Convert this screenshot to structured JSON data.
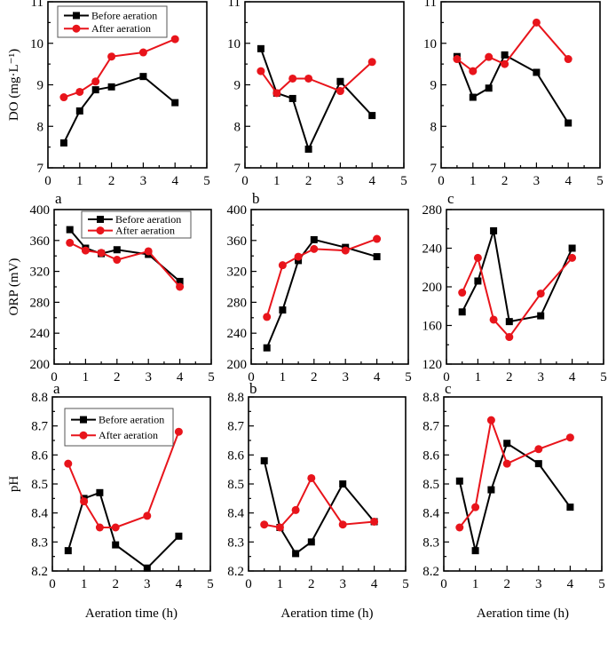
{
  "colors": {
    "before": "#000000",
    "after": "#e8141b"
  },
  "legend": {
    "before": "Before aeration",
    "after": "After aeration"
  },
  "chart_data": [
    {
      "type": "line",
      "panel": "",
      "row": 0,
      "col": 0,
      "ylabel": "DO (mg·L⁻¹)",
      "xlabel": "",
      "ylim": [
        7,
        11
      ],
      "yticks": [
        "7",
        "8",
        "9",
        "10",
        "11"
      ],
      "xlim": [
        0,
        5
      ],
      "xticks": [
        "0",
        "1",
        "2",
        "3",
        "4",
        "5"
      ],
      "legend": "top-left",
      "x": [
        0.5,
        1,
        1.5,
        2,
        3,
        4
      ],
      "series": [
        {
          "name": "Before aeration",
          "values": [
            7.6,
            8.37,
            8.88,
            8.95,
            9.2,
            8.57
          ]
        },
        {
          "name": "After aeration",
          "values": [
            8.7,
            8.83,
            9.08,
            9.68,
            9.78,
            10.1
          ]
        }
      ]
    },
    {
      "type": "line",
      "panel": "",
      "row": 0,
      "col": 1,
      "ylabel": "",
      "xlabel": "",
      "ylim": [
        7,
        11
      ],
      "yticks": [
        "7",
        "8",
        "9",
        "10",
        "11"
      ],
      "xlim": [
        0,
        5
      ],
      "xticks": [
        "0",
        "1",
        "2",
        "3",
        "4",
        "5"
      ],
      "x": [
        0.5,
        1,
        1.5,
        2,
        3,
        4
      ],
      "series": [
        {
          "name": "Before aeration",
          "values": [
            9.87,
            8.8,
            8.67,
            7.45,
            9.08,
            8.26
          ]
        },
        {
          "name": "After aeration",
          "values": [
            9.33,
            8.8,
            9.15,
            9.15,
            8.85,
            9.55
          ]
        }
      ]
    },
    {
      "type": "line",
      "panel": "",
      "row": 0,
      "col": 2,
      "ylabel": "",
      "xlabel": "",
      "ylim": [
        7,
        11
      ],
      "yticks": [
        "7",
        "8",
        "9",
        "10",
        "11"
      ],
      "xlim": [
        0,
        5
      ],
      "xticks": [
        "0",
        "1",
        "2",
        "3",
        "4",
        "5"
      ],
      "x": [
        0.5,
        1,
        1.5,
        2,
        3,
        4
      ],
      "series": [
        {
          "name": "Before aeration",
          "values": [
            9.68,
            8.7,
            8.92,
            9.72,
            9.3,
            8.08
          ]
        },
        {
          "name": "After aeration",
          "values": [
            9.62,
            9.33,
            9.67,
            9.5,
            10.5,
            9.62
          ]
        }
      ]
    },
    {
      "type": "line",
      "panel": "a",
      "row": 1,
      "col": 0,
      "ylabel": "ORP (mV)",
      "xlabel": "",
      "ylim": [
        200,
        400
      ],
      "yticks": [
        "200",
        "240",
        "280",
        "320",
        "360",
        "400"
      ],
      "xlim": [
        0,
        5
      ],
      "xticks": [
        "0",
        "1",
        "2",
        "3",
        "4",
        "5"
      ],
      "legend": "top-center",
      "x": [
        0.5,
        1,
        1.5,
        2,
        3,
        4
      ],
      "series": [
        {
          "name": "Before aeration",
          "values": [
            374,
            350,
            343,
            348,
            342,
            307
          ]
        },
        {
          "name": "After aeration",
          "values": [
            357,
            347,
            344,
            335,
            346,
            300
          ]
        }
      ]
    },
    {
      "type": "line",
      "panel": "b",
      "row": 1,
      "col": 1,
      "ylabel": "",
      "xlabel": "",
      "ylim": [
        200,
        400
      ],
      "yticks": [
        "200",
        "240",
        "280",
        "320",
        "360",
        "400"
      ],
      "xlim": [
        0,
        5
      ],
      "xticks": [
        "0",
        "1",
        "2",
        "3",
        "4",
        "5"
      ],
      "x": [
        0.5,
        1,
        1.5,
        2,
        3,
        4
      ],
      "series": [
        {
          "name": "Before aeration",
          "values": [
            221,
            270,
            334,
            361,
            351,
            339
          ]
        },
        {
          "name": "After aeration",
          "values": [
            261,
            328,
            339,
            349,
            347,
            362
          ]
        }
      ]
    },
    {
      "type": "line",
      "panel": "c",
      "row": 1,
      "col": 2,
      "ylabel": "",
      "xlabel": "",
      "ylim": [
        120,
        280
      ],
      "yticks": [
        "120",
        "160",
        "200",
        "240",
        "280"
      ],
      "xlim": [
        0,
        5
      ],
      "xticks": [
        "0",
        "1",
        "2",
        "3",
        "4",
        "5"
      ],
      "x": [
        0.5,
        1,
        1.5,
        2,
        3,
        4
      ],
      "series": [
        {
          "name": "Before aeration",
          "values": [
            174,
            206,
            258,
            164,
            170,
            240
          ]
        },
        {
          "name": "After aeration",
          "values": [
            194,
            230,
            166,
            148,
            193,
            230
          ]
        }
      ]
    },
    {
      "type": "line",
      "panel": "a",
      "row": 2,
      "col": 0,
      "ylabel": "pH",
      "xlabel": "Aeration time (h)",
      "ylim": [
        8.2,
        8.8
      ],
      "yticks": [
        "8.2",
        "8.3",
        "8.4",
        "8.5",
        "8.6",
        "8.7",
        "8.8"
      ],
      "xlim": [
        0,
        5
      ],
      "xticks": [
        "0",
        "1",
        "2",
        "3",
        "4",
        "5"
      ],
      "legend": "top-left",
      "x": [
        0.5,
        1,
        1.5,
        2,
        3,
        4
      ],
      "series": [
        {
          "name": "Before aeration",
          "values": [
            8.27,
            8.45,
            8.47,
            8.29,
            8.21,
            8.32
          ]
        },
        {
          "name": "After aeration",
          "values": [
            8.57,
            8.44,
            8.35,
            8.35,
            8.39,
            8.68
          ]
        }
      ]
    },
    {
      "type": "line",
      "panel": "b",
      "row": 2,
      "col": 1,
      "ylabel": "",
      "xlabel": "Aeration time (h)",
      "ylim": [
        8.2,
        8.8
      ],
      "yticks": [
        "8.2",
        "8.3",
        "8.4",
        "8.5",
        "8.6",
        "8.7",
        "8.8"
      ],
      "xlim": [
        0,
        5
      ],
      "xticks": [
        "0",
        "1",
        "2",
        "3",
        "4",
        "5"
      ],
      "x": [
        0.5,
        1,
        1.5,
        2,
        3,
        4
      ],
      "series": [
        {
          "name": "Before aeration",
          "values": [
            8.58,
            8.35,
            8.26,
            8.3,
            8.5,
            8.37
          ]
        },
        {
          "name": "After aeration",
          "values": [
            8.36,
            8.35,
            8.41,
            8.52,
            8.36,
            8.37
          ]
        }
      ]
    },
    {
      "type": "line",
      "panel": "c",
      "row": 2,
      "col": 2,
      "ylabel": "",
      "xlabel": "Aeration time (h)",
      "ylim": [
        8.2,
        8.8
      ],
      "yticks": [
        "8.2",
        "8.3",
        "8.4",
        "8.5",
        "8.6",
        "8.7",
        "8.8"
      ],
      "xlim": [
        0,
        5
      ],
      "xticks": [
        "0",
        "1",
        "2",
        "3",
        "4",
        "5"
      ],
      "x": [
        0.5,
        1,
        1.5,
        2,
        3,
        4
      ],
      "series": [
        {
          "name": "Before aeration",
          "values": [
            8.51,
            8.27,
            8.48,
            8.64,
            8.57,
            8.42
          ]
        },
        {
          "name": "After aeration",
          "values": [
            8.35,
            8.42,
            8.72,
            8.57,
            8.62,
            8.66
          ]
        }
      ]
    }
  ]
}
